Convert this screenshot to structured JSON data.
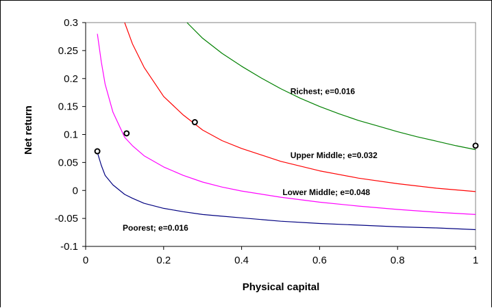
{
  "chart_data": {
    "type": "line",
    "title": "",
    "xlabel": "Physical capital",
    "ylabel": "Net return",
    "xlim": [
      0,
      1
    ],
    "ylim": [
      -0.1,
      0.3
    ],
    "xticks": [
      "0",
      "0.2",
      "0.4",
      "0.6",
      "0.8",
      "1"
    ],
    "yticks": [
      "-0.1",
      "-0.05",
      "0",
      "0.05",
      "0.1",
      "0.15",
      "0.2",
      "0.25",
      "0.3"
    ],
    "grid": false,
    "legend": "none",
    "series": [
      {
        "color": "#008000",
        "x": [
          0.26,
          0.3,
          0.35,
          0.4,
          0.45,
          0.5,
          0.55,
          0.6,
          0.65,
          0.7,
          0.75,
          0.8,
          0.85,
          0.9,
          0.95,
          1.0
        ],
        "y": [
          0.3,
          0.272,
          0.245,
          0.222,
          0.201,
          0.182,
          0.165,
          0.15,
          0.137,
          0.125,
          0.115,
          0.105,
          0.096,
          0.088,
          0.08,
          0.073
        ]
      },
      {
        "color": "#ff0000",
        "x": [
          0.1,
          0.12,
          0.15,
          0.2,
          0.25,
          0.3,
          0.35,
          0.4,
          0.5,
          0.6,
          0.7,
          0.8,
          0.9,
          1.0
        ],
        "y": [
          0.3,
          0.262,
          0.22,
          0.168,
          0.135,
          0.108,
          0.089,
          0.075,
          0.052,
          0.035,
          0.022,
          0.012,
          0.004,
          -0.002
        ]
      },
      {
        "color": "#ff00ff",
        "x": [
          0.03,
          0.04,
          0.05,
          0.07,
          0.1,
          0.12,
          0.15,
          0.2,
          0.25,
          0.3,
          0.35,
          0.4,
          0.5,
          0.6,
          0.7,
          0.8,
          0.9,
          1.0
        ],
        "y": [
          0.28,
          0.23,
          0.19,
          0.14,
          0.095,
          0.08,
          0.062,
          0.042,
          0.027,
          0.015,
          0.006,
          -0.001,
          -0.012,
          -0.021,
          -0.028,
          -0.034,
          -0.039,
          -0.043
        ]
      },
      {
        "color": "#000080",
        "x": [
          0.03,
          0.04,
          0.05,
          0.07,
          0.1,
          0.12,
          0.15,
          0.2,
          0.25,
          0.3,
          0.35,
          0.4,
          0.5,
          0.6,
          0.7,
          0.8,
          0.9,
          1.0
        ],
        "y": [
          0.068,
          0.045,
          0.027,
          0.01,
          -0.007,
          -0.014,
          -0.023,
          -0.032,
          -0.038,
          -0.043,
          -0.046,
          -0.049,
          -0.055,
          -0.059,
          -0.062,
          -0.065,
          -0.067,
          -0.07
        ]
      }
    ],
    "markers": [
      {
        "x": 0.03,
        "y": 0.07
      },
      {
        "x": 0.105,
        "y": 0.102
      },
      {
        "x": 0.28,
        "y": 0.122
      },
      {
        "x": 1.0,
        "y": 0.08
      }
    ],
    "annotations": [
      {
        "text": "Richest; e=0.016",
        "x": 0.525,
        "y": 0.172
      },
      {
        "text": "Upper Middle; e=0.032",
        "x": 0.525,
        "y": 0.058
      },
      {
        "text": "Lower Middle; e=0.048",
        "x": 0.505,
        "y": -0.008
      },
      {
        "text": "Poorest; e=0.016",
        "x": 0.095,
        "y": -0.072
      }
    ]
  }
}
